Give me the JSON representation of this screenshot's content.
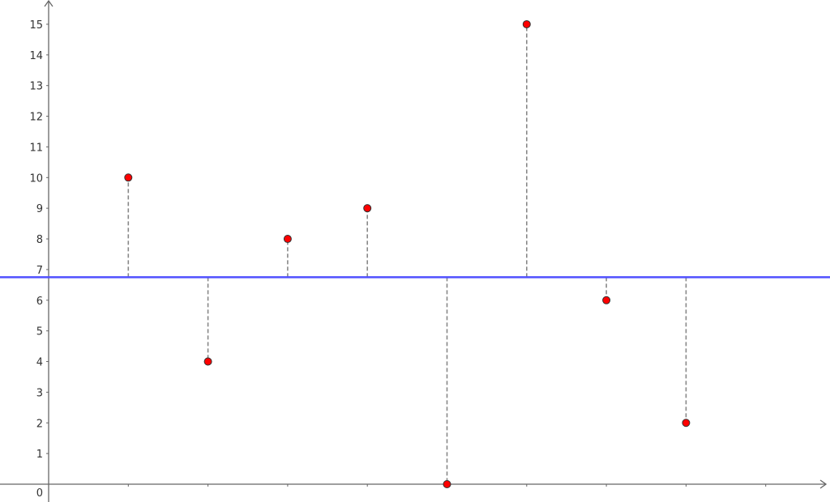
{
  "chart_data": {
    "type": "scatter",
    "title": "",
    "xlabel": "",
    "ylabel": "",
    "x": [
      1,
      2,
      3,
      4,
      5,
      6,
      7,
      8
    ],
    "values": [
      10,
      4,
      8,
      9,
      0,
      15,
      6,
      2
    ],
    "reference_line": 6.75,
    "xlim": [
      -0.6,
      9.8
    ],
    "ylim": [
      -0.5,
      15.8
    ],
    "y_ticks": [
      "0",
      "1",
      "2",
      "3",
      "4",
      "5",
      "6",
      "7",
      "8",
      "9",
      "10",
      "11",
      "12",
      "13",
      "14",
      "15"
    ],
    "x_ticks_labeled": false,
    "grid": false,
    "colors": {
      "point": "#ff0000",
      "point_stroke": "#333333",
      "reference_line": "#5050ff",
      "residual": "#888888",
      "axis": "#666666"
    }
  }
}
